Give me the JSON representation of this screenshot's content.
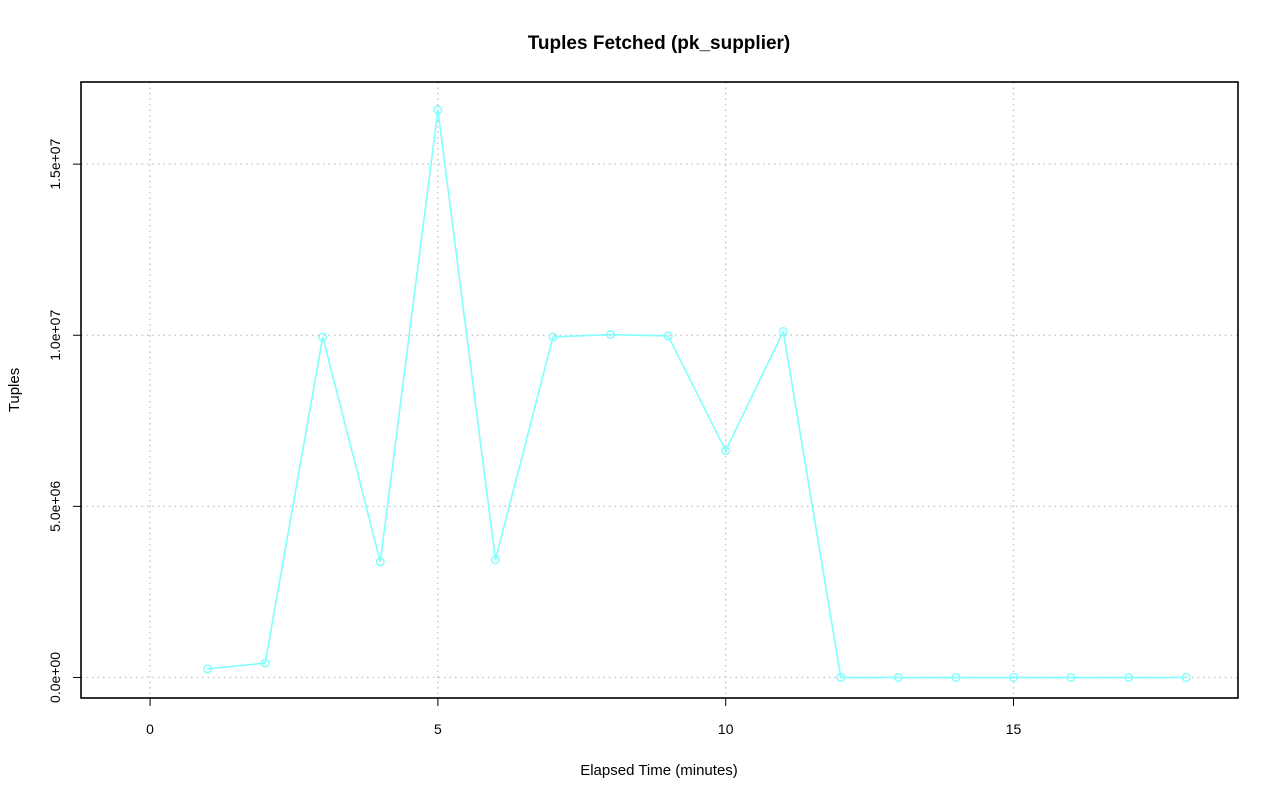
{
  "chart_data": {
    "type": "line",
    "title": "Tuples Fetched (pk_supplier)",
    "xlabel": "Elapsed Time (minutes)",
    "ylabel": "Tuples",
    "xlim": [
      -1.2,
      18.9
    ],
    "ylim": [
      -600000,
      17400000
    ],
    "x_ticks": [
      0,
      5,
      10,
      15
    ],
    "x_tick_labels": [
      "0",
      "5",
      "10",
      "15"
    ],
    "y_ticks": [
      0,
      5000000,
      10000000,
      15000000
    ],
    "y_tick_labels": [
      "0.0e+00",
      "5.0e+06",
      "1.0e+07",
      "1.5e+07"
    ],
    "grid": true,
    "legend": "none",
    "series": [
      {
        "color": "#7fffff",
        "marker": "circle",
        "x": [
          1,
          2,
          3,
          4,
          5,
          6,
          7,
          8,
          9,
          10,
          11,
          12,
          13,
          14,
          15,
          16,
          17,
          18
        ],
        "values": [
          250000,
          420000,
          9950000,
          3380000,
          16580000,
          3440000,
          9950000,
          10020000,
          9980000,
          6630000,
          10110000,
          0,
          0,
          0,
          0,
          0,
          0,
          0
        ]
      }
    ]
  }
}
